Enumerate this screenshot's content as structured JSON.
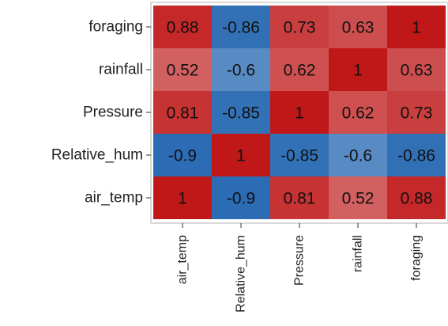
{
  "chart_data": {
    "type": "heatmap",
    "title": "",
    "x_labels": [
      "air_temp",
      "Relative_hum",
      "Pressure",
      "rainfall",
      "foraging"
    ],
    "y_labels": [
      "foraging",
      "rainfall",
      "Pressure",
      "Relative_hum",
      "air_temp"
    ],
    "values": [
      [
        0.88,
        -0.86,
        0.73,
        0.63,
        1
      ],
      [
        0.52,
        -0.6,
        0.62,
        1,
        0.63
      ],
      [
        0.81,
        -0.85,
        1,
        0.62,
        0.73
      ],
      [
        -0.9,
        1,
        -0.85,
        -0.6,
        -0.86
      ],
      [
        1,
        -0.9,
        0.81,
        0.52,
        0.88
      ]
    ],
    "value_labels": [
      [
        "0.88",
        "-0.86",
        "0.73",
        "0.63",
        "1"
      ],
      [
        "0.52",
        "-0.6",
        "0.62",
        "1",
        "0.63"
      ],
      [
        "0.81",
        "-0.85",
        "1",
        "0.62",
        "0.73"
      ],
      [
        "-0.9",
        "1",
        "-0.85",
        "-0.6",
        "-0.86"
      ],
      [
        "1",
        "-0.9",
        "0.81",
        "0.52",
        "0.88"
      ]
    ],
    "color_scale": {
      "type": "diverging",
      "min": -1,
      "max": 1,
      "low_color": "#1f63b0",
      "mid_color": "#f7f7f7",
      "high_color": "#c01818"
    },
    "legend": "none",
    "grid": false
  }
}
